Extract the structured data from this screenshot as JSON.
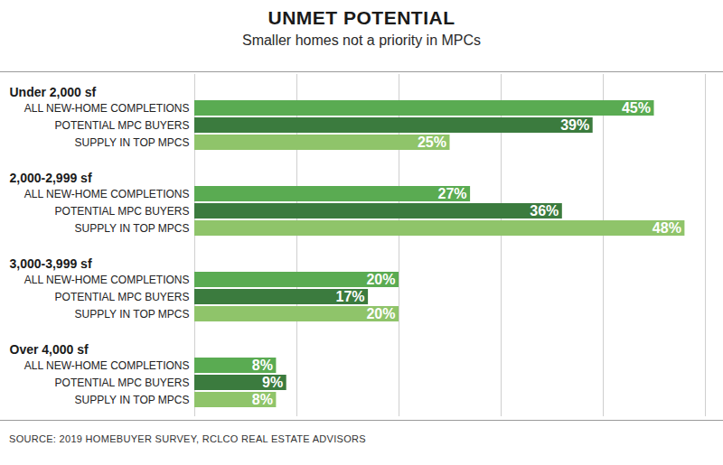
{
  "chart_data": {
    "type": "bar",
    "title": "UNMET POTENTIAL",
    "subtitle": "Smaller homes not a priority in MPCs",
    "source": "SOURCE: 2019 HOMEBUYER SURVEY, RCLCO REAL ESTATE ADVISORS",
    "orientation": "horizontal",
    "categories": [
      "Under 2,000 sf",
      "2,000-2,999 sf",
      "3,000-3,999 sf",
      "Over 4,000 sf"
    ],
    "series": [
      {
        "name": "ALL NEW-HOME COMPLETIONS",
        "color": "#5aab52",
        "values": [
          45,
          27,
          20,
          8
        ],
        "value_labels": [
          "45%",
          "27%",
          "20%",
          "8%"
        ]
      },
      {
        "name": "POTENTIAL MPC BUYERS",
        "color": "#3b7b3e",
        "values": [
          39,
          36,
          17,
          9
        ],
        "value_labels": [
          "39%",
          "36%",
          "17%",
          "9%"
        ]
      },
      {
        "name": "SUPPLY IN TOP MPCS",
        "color": "#8fc46a",
        "values": [
          25,
          48,
          20,
          8
        ],
        "value_labels": [
          "25%",
          "48%",
          "20%",
          "8%"
        ]
      }
    ],
    "xlim": [
      0,
      50
    ],
    "xticks": [
      0,
      10,
      20,
      30,
      40,
      50
    ],
    "grid": true,
    "data_labels": true,
    "tick_labels": "y"
  }
}
